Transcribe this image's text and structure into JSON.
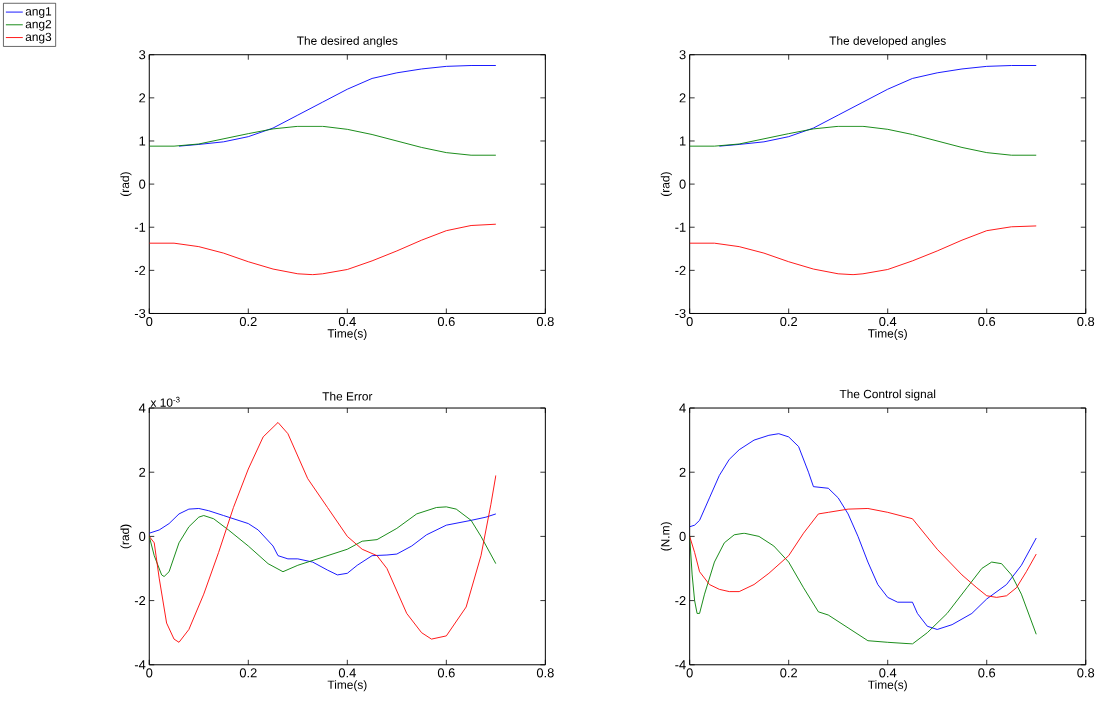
{
  "chart_data": [
    {
      "type": "line",
      "title": "The desired angles",
      "xlabel": "Time(s)",
      "ylabel": "(rad)",
      "xlim": [
        0,
        0.8
      ],
      "ylim": [
        -3,
        3
      ],
      "xticks": [
        0,
        0.2,
        0.4,
        0.6,
        0.8
      ],
      "yticks": [
        -3,
        -2,
        -1,
        0,
        1,
        2,
        3
      ],
      "legend": "top left",
      "series": [
        {
          "name": "ang1",
          "color": "#0000ff",
          "x": [
            0.06,
            0.1,
            0.15,
            0.2,
            0.25,
            0.3,
            0.35,
            0.4,
            0.45,
            0.5,
            0.55,
            0.6,
            0.65,
            0.7
          ],
          "values": [
            0.88,
            0.92,
            0.98,
            1.1,
            1.3,
            1.6,
            1.9,
            2.2,
            2.45,
            2.58,
            2.67,
            2.73,
            2.75,
            2.75
          ]
        },
        {
          "name": "ang2",
          "color": "#008000",
          "x": [
            0,
            0.05,
            0.1,
            0.15,
            0.2,
            0.25,
            0.3,
            0.35,
            0.4,
            0.45,
            0.5,
            0.55,
            0.6,
            0.65,
            0.7
          ],
          "values": [
            0.88,
            0.88,
            0.93,
            1.05,
            1.17,
            1.28,
            1.34,
            1.34,
            1.27,
            1.15,
            1.0,
            0.85,
            0.73,
            0.67,
            0.67
          ]
        },
        {
          "name": "ang3",
          "color": "#ff0000",
          "x": [
            0,
            0.05,
            0.1,
            0.15,
            0.2,
            0.25,
            0.3,
            0.33,
            0.35,
            0.4,
            0.45,
            0.5,
            0.55,
            0.6,
            0.65,
            0.7
          ],
          "values": [
            -1.37,
            -1.37,
            -1.45,
            -1.6,
            -1.8,
            -1.97,
            -2.08,
            -2.1,
            -2.08,
            -1.98,
            -1.78,
            -1.55,
            -1.3,
            -1.08,
            -0.96,
            -0.93
          ]
        }
      ]
    },
    {
      "type": "line",
      "title": "The developed angles",
      "xlabel": "Time(s)",
      "ylabel": "(rad)",
      "xlim": [
        0,
        0.8
      ],
      "ylim": [
        -3,
        3
      ],
      "xticks": [
        0,
        0.2,
        0.4,
        0.6,
        0.8
      ],
      "yticks": [
        -3,
        -2,
        -1,
        0,
        1,
        2,
        3
      ],
      "series": [
        {
          "color": "#0000ff",
          "x": [
            0.06,
            0.1,
            0.15,
            0.2,
            0.25,
            0.3,
            0.35,
            0.4,
            0.45,
            0.5,
            0.55,
            0.6,
            0.65,
            0.7
          ],
          "values": [
            0.88,
            0.92,
            0.98,
            1.1,
            1.3,
            1.6,
            1.9,
            2.2,
            2.45,
            2.58,
            2.67,
            2.73,
            2.75,
            2.75
          ]
        },
        {
          "color": "#008000",
          "x": [
            0,
            0.05,
            0.1,
            0.15,
            0.2,
            0.25,
            0.3,
            0.35,
            0.4,
            0.45,
            0.5,
            0.55,
            0.6,
            0.65,
            0.7
          ],
          "values": [
            0.88,
            0.88,
            0.93,
            1.05,
            1.17,
            1.28,
            1.34,
            1.34,
            1.27,
            1.15,
            1.0,
            0.85,
            0.73,
            0.67,
            0.67
          ]
        },
        {
          "color": "#ff0000",
          "x": [
            0,
            0.05,
            0.1,
            0.15,
            0.2,
            0.25,
            0.3,
            0.33,
            0.35,
            0.4,
            0.45,
            0.5,
            0.55,
            0.6,
            0.65,
            0.7
          ],
          "values": [
            -1.37,
            -1.37,
            -1.45,
            -1.6,
            -1.8,
            -1.97,
            -2.08,
            -2.1,
            -2.08,
            -1.98,
            -1.78,
            -1.55,
            -1.3,
            -1.08,
            -0.99,
            -0.97
          ]
        }
      ]
    },
    {
      "type": "line",
      "title": "The Error",
      "xlabel": "Time(s)",
      "ylabel": "(rad)",
      "xlim": [
        0,
        0.8
      ],
      "ylim": [
        -4,
        4
      ],
      "xticks": [
        0,
        0.2,
        0.4,
        0.6,
        0.8
      ],
      "yticks": [
        -4,
        -2,
        0,
        2,
        4
      ],
      "annotations": [
        "x 10$^{-3}$"
      ],
      "series": [
        {
          "color": "#0000ff",
          "x": [
            0,
            0.02,
            0.04,
            0.06,
            0.08,
            0.1,
            0.12,
            0.15,
            0.2,
            0.22,
            0.25,
            0.26,
            0.28,
            0.3,
            0.33,
            0.36,
            0.38,
            0.4,
            0.42,
            0.45,
            0.48,
            0.5,
            0.53,
            0.56,
            0.6,
            0.65,
            0.68,
            0.7
          ],
          "values": [
            0.1,
            0.2,
            0.4,
            0.7,
            0.85,
            0.87,
            0.8,
            0.65,
            0.4,
            0.2,
            -0.3,
            -0.6,
            -0.7,
            -0.7,
            -0.8,
            -1.05,
            -1.2,
            -1.15,
            -0.9,
            -0.6,
            -0.58,
            -0.55,
            -0.3,
            0.05,
            0.35,
            0.5,
            0.6,
            0.7
          ]
        },
        {
          "color": "#008000",
          "x": [
            0,
            0.01,
            0.025,
            0.03,
            0.04,
            0.06,
            0.08,
            0.1,
            0.11,
            0.13,
            0.16,
            0.2,
            0.24,
            0.27,
            0.3,
            0.35,
            0.4,
            0.43,
            0.46,
            0.5,
            0.54,
            0.58,
            0.6,
            0.62,
            0.65,
            0.67,
            0.7
          ],
          "values": [
            0,
            -0.6,
            -1.2,
            -1.25,
            -1.1,
            -0.2,
            0.3,
            0.6,
            0.65,
            0.55,
            0.2,
            -0.3,
            -0.85,
            -1.1,
            -0.9,
            -0.65,
            -0.4,
            -0.15,
            -0.1,
            0.25,
            0.7,
            0.9,
            0.92,
            0.85,
            0.5,
            0,
            -0.85
          ]
        },
        {
          "color": "#ff0000",
          "x": [
            0,
            0.01,
            0.02,
            0.035,
            0.05,
            0.06,
            0.08,
            0.11,
            0.14,
            0.17,
            0.2,
            0.23,
            0.26,
            0.28,
            0.32,
            0.36,
            0.4,
            0.43,
            0.46,
            0.48,
            0.52,
            0.55,
            0.57,
            0.6,
            0.64,
            0.67,
            0.69,
            0.7
          ],
          "values": [
            0,
            -0.2,
            -1.3,
            -2.7,
            -3.2,
            -3.3,
            -2.9,
            -1.8,
            -0.5,
            0.9,
            2.1,
            3.1,
            3.55,
            3.2,
            1.8,
            0.9,
            0,
            -0.4,
            -0.6,
            -1.0,
            -2.4,
            -3.0,
            -3.2,
            -3.1,
            -2.2,
            -0.6,
            1.0,
            1.9
          ]
        }
      ]
    },
    {
      "type": "line",
      "title": "The Control signal",
      "xlabel": "Time(s)",
      "ylabel": "(N.m)",
      "xlim": [
        0,
        0.8
      ],
      "ylim": [
        -4,
        4
      ],
      "xticks": [
        0,
        0.2,
        0.4,
        0.6,
        0.8
      ],
      "yticks": [
        -4,
        -2,
        0,
        2,
        4
      ],
      "series": [
        {
          "color": "#0000ff",
          "x": [
            0,
            0.01,
            0.02,
            0.04,
            0.06,
            0.08,
            0.1,
            0.13,
            0.16,
            0.18,
            0.2,
            0.22,
            0.24,
            0.25,
            0.28,
            0.3,
            0.32,
            0.34,
            0.36,
            0.38,
            0.4,
            0.42,
            0.45,
            0.46,
            0.48,
            0.5,
            0.53,
            0.57,
            0.6,
            0.64,
            0.67,
            0.7
          ],
          "values": [
            0.3,
            0.35,
            0.5,
            1.2,
            1.9,
            2.4,
            2.7,
            3.0,
            3.15,
            3.2,
            3.1,
            2.8,
            2.0,
            1.55,
            1.5,
            1.2,
            0.7,
            0,
            -0.8,
            -1.5,
            -1.9,
            -2.05,
            -2.05,
            -2.4,
            -2.8,
            -2.9,
            -2.75,
            -2.4,
            -1.95,
            -1.5,
            -0.9,
            -0.05
          ]
        },
        {
          "color": "#008000",
          "x": [
            0,
            0.005,
            0.01,
            0.015,
            0.02,
            0.03,
            0.05,
            0.07,
            0.09,
            0.11,
            0.14,
            0.17,
            0.2,
            0.23,
            0.26,
            0.28,
            0.32,
            0.36,
            0.4,
            0.45,
            0.48,
            0.52,
            0.56,
            0.59,
            0.61,
            0.63,
            0.65,
            0.67,
            0.7
          ],
          "values": [
            0,
            -1.2,
            -2.0,
            -2.4,
            -2.4,
            -1.8,
            -0.8,
            -0.2,
            0.05,
            0.1,
            0,
            -0.3,
            -0.8,
            -1.6,
            -2.35,
            -2.45,
            -2.85,
            -3.25,
            -3.3,
            -3.35,
            -3.0,
            -2.4,
            -1.6,
            -1.0,
            -0.8,
            -0.85,
            -1.2,
            -1.8,
            -3.05
          ]
        },
        {
          "color": "#ff0000",
          "x": [
            0,
            0.01,
            0.02,
            0.04,
            0.06,
            0.08,
            0.1,
            0.13,
            0.16,
            0.2,
            0.23,
            0.26,
            0.28,
            0.32,
            0.36,
            0.4,
            0.45,
            0.5,
            0.55,
            0.58,
            0.6,
            0.62,
            0.64,
            0.66,
            0.68,
            0.7
          ],
          "values": [
            0,
            -0.5,
            -1.1,
            -1.5,
            -1.65,
            -1.72,
            -1.72,
            -1.5,
            -1.15,
            -0.6,
            0.1,
            0.7,
            0.75,
            0.85,
            0.87,
            0.75,
            0.55,
            -0.4,
            -1.2,
            -1.6,
            -1.85,
            -1.9,
            -1.85,
            -1.6,
            -1.1,
            -0.55
          ]
        }
      ]
    }
  ]
}
